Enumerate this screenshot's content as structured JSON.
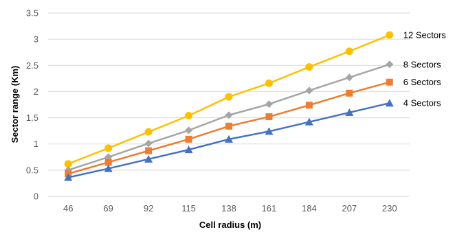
{
  "chart_data": {
    "type": "line",
    "title": "",
    "xlabel": "Cell radius (m)",
    "ylabel": "Sector range (Km)",
    "categories": [
      "46",
      "69",
      "92",
      "115",
      "138",
      "161",
      "184",
      "207",
      "230"
    ],
    "ylim": [
      0,
      3.5
    ],
    "yticks": [
      "0",
      "0.5",
      "1",
      "1.5",
      "2",
      "2.5",
      "3",
      "3.5"
    ],
    "grid": "horizontal",
    "legend": "inline labels at right end of each line",
    "series": [
      {
        "name": "12 Sectors",
        "color": "#FFC000",
        "marker": "circle",
        "values": [
          0.62,
          0.92,
          1.23,
          1.54,
          1.9,
          2.16,
          2.47,
          2.77,
          3.08
        ]
      },
      {
        "name": "8 Sectors",
        "color": "#A5A5A5",
        "marker": "diamond",
        "values": [
          0.5,
          0.75,
          1.01,
          1.26,
          1.55,
          1.76,
          2.02,
          2.27,
          2.52
        ]
      },
      {
        "name": "6 Sectors",
        "color": "#ED7D31",
        "marker": "square",
        "values": [
          0.43,
          0.65,
          0.87,
          1.09,
          1.34,
          1.52,
          1.74,
          1.97,
          2.18
        ]
      },
      {
        "name": "4 Sectors",
        "color": "#4472C4",
        "marker": "triangle",
        "values": [
          0.36,
          0.53,
          0.71,
          0.89,
          1.09,
          1.24,
          1.42,
          1.6,
          1.78
        ]
      }
    ]
  }
}
